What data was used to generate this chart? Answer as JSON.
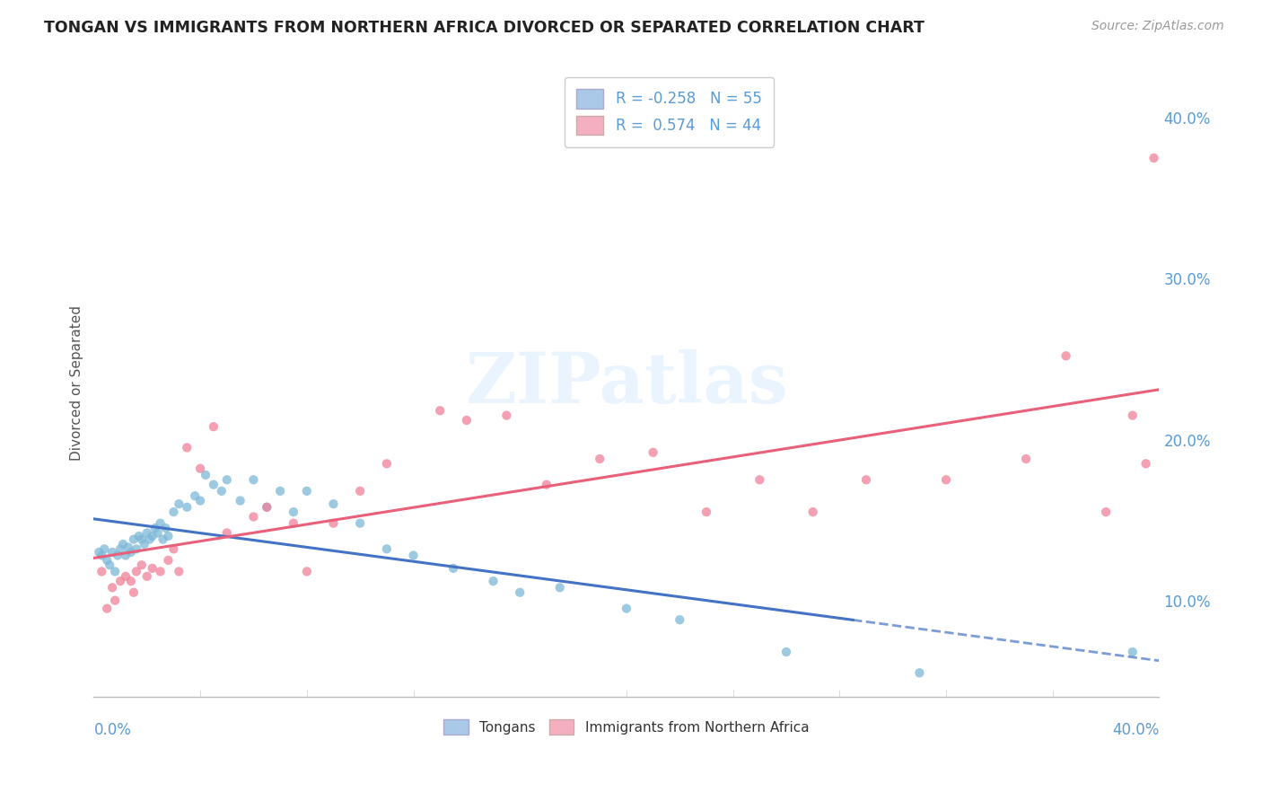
{
  "title": "TONGAN VS IMMIGRANTS FROM NORTHERN AFRICA DIVORCED OR SEPARATED CORRELATION CHART",
  "source": "Source: ZipAtlas.com",
  "ylabel": "Divorced or Separated",
  "y_tick_labels": [
    "10.0%",
    "20.0%",
    "30.0%",
    "40.0%"
  ],
  "y_tick_values": [
    0.1,
    0.2,
    0.3,
    0.4
  ],
  "x_min": 0.0,
  "x_max": 0.4,
  "y_min": 0.04,
  "y_max": 0.43,
  "legend_line1": "R = -0.258   N = 55",
  "legend_line2": "R =  0.574   N = 44",
  "tongans_color": "#7db8d8",
  "northern_africa_color": "#f08098",
  "tongans_line_color": "#4472c4",
  "northern_africa_line_color": "#e8607a",
  "legend_blue_patch": "#aac8e8",
  "legend_pink_patch": "#f4b0c0",
  "watermark": "ZIPatlas",
  "background_color": "#ffffff",
  "grid_color": "#d8d8d8",
  "tongans_x": [
    0.002,
    0.003,
    0.004,
    0.005,
    0.006,
    0.007,
    0.008,
    0.009,
    0.01,
    0.011,
    0.012,
    0.013,
    0.014,
    0.015,
    0.016,
    0.017,
    0.018,
    0.019,
    0.02,
    0.021,
    0.022,
    0.023,
    0.024,
    0.025,
    0.026,
    0.027,
    0.028,
    0.03,
    0.032,
    0.035,
    0.038,
    0.04,
    0.042,
    0.045,
    0.048,
    0.05,
    0.055,
    0.06,
    0.065,
    0.07,
    0.075,
    0.08,
    0.09,
    0.1,
    0.11,
    0.12,
    0.135,
    0.15,
    0.16,
    0.175,
    0.2,
    0.22,
    0.26,
    0.31,
    0.39
  ],
  "tongans_y": [
    0.13,
    0.128,
    0.132,
    0.125,
    0.122,
    0.13,
    0.118,
    0.128,
    0.132,
    0.135,
    0.128,
    0.133,
    0.13,
    0.138,
    0.132,
    0.14,
    0.138,
    0.135,
    0.142,
    0.138,
    0.14,
    0.145,
    0.142,
    0.148,
    0.138,
    0.145,
    0.14,
    0.155,
    0.16,
    0.158,
    0.165,
    0.162,
    0.178,
    0.172,
    0.168,
    0.175,
    0.162,
    0.175,
    0.158,
    0.168,
    0.155,
    0.168,
    0.16,
    0.148,
    0.132,
    0.128,
    0.12,
    0.112,
    0.105,
    0.108,
    0.095,
    0.088,
    0.068,
    0.055,
    0.068
  ],
  "northern_africa_x": [
    0.003,
    0.005,
    0.007,
    0.008,
    0.01,
    0.012,
    0.014,
    0.015,
    0.016,
    0.018,
    0.02,
    0.022,
    0.025,
    0.028,
    0.03,
    0.032,
    0.035,
    0.04,
    0.045,
    0.05,
    0.06,
    0.065,
    0.075,
    0.08,
    0.09,
    0.1,
    0.11,
    0.13,
    0.14,
    0.155,
    0.17,
    0.19,
    0.21,
    0.23,
    0.25,
    0.27,
    0.29,
    0.32,
    0.35,
    0.365,
    0.38,
    0.39,
    0.395,
    0.398
  ],
  "northern_africa_y": [
    0.118,
    0.095,
    0.108,
    0.1,
    0.112,
    0.115,
    0.112,
    0.105,
    0.118,
    0.122,
    0.115,
    0.12,
    0.118,
    0.125,
    0.132,
    0.118,
    0.195,
    0.182,
    0.208,
    0.142,
    0.152,
    0.158,
    0.148,
    0.118,
    0.148,
    0.168,
    0.185,
    0.218,
    0.212,
    0.215,
    0.172,
    0.188,
    0.192,
    0.155,
    0.175,
    0.155,
    0.175,
    0.175,
    0.188,
    0.252,
    0.155,
    0.215,
    0.185,
    0.375
  ]
}
